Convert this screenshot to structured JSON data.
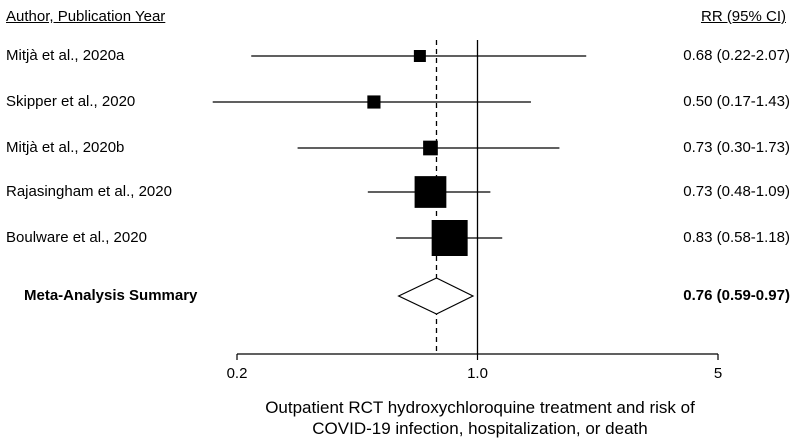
{
  "chart_data": {
    "type": "forest",
    "xscale": "log",
    "xlim": [
      0.2,
      5
    ],
    "xticks": [
      "0.2",
      "1.0",
      "5"
    ],
    "xtick_values": [
      0.2,
      1.0,
      5
    ],
    "reference_line": 1.0,
    "summary_line": 0.76,
    "column_headers": {
      "study": "Author, Publication Year",
      "estimate": "RR (95% CI)"
    },
    "studies": [
      {
        "label": "Mitjà et al., 2020a",
        "rr": 0.68,
        "lo": 0.22,
        "hi": 2.07,
        "weight": 1,
        "text": "0.68 (0.22-2.07)"
      },
      {
        "label": "Skipper et al., 2020",
        "rr": 0.5,
        "lo": 0.17,
        "hi": 1.43,
        "weight": 1.2,
        "text": "0.50 (0.17-1.43)"
      },
      {
        "label": "Mitjà et al., 2020b",
        "rr": 0.73,
        "lo": 0.3,
        "hi": 1.73,
        "weight": 1.5,
        "text": "0.73 (0.30-1.73)"
      },
      {
        "label": "Rajasingham et al., 2020",
        "rr": 0.73,
        "lo": 0.48,
        "hi": 1.09,
        "weight": 7,
        "text": "0.73 (0.48-1.09)"
      },
      {
        "label": "Boulware et al., 2020",
        "rr": 0.83,
        "lo": 0.58,
        "hi": 1.18,
        "weight": 9,
        "text": "0.83 (0.58-1.18)"
      }
    ],
    "summary": {
      "label": "Meta-Analysis Summary",
      "rr": 0.76,
      "lo": 0.59,
      "hi": 0.97,
      "text": "0.76 (0.59-0.97)"
    },
    "xlabel_lines": [
      "Outpatient RCT hydroxychloroquine treatment and risk of",
      "COVID-19 infection, hospitalization, or death"
    ]
  }
}
